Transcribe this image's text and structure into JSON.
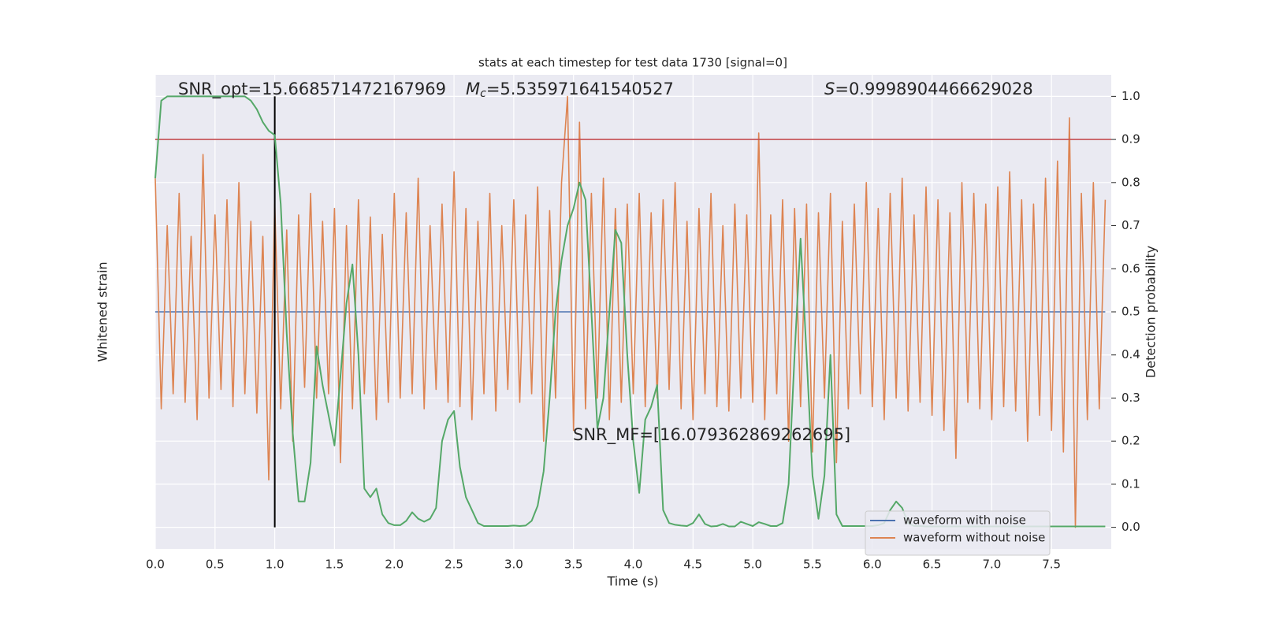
{
  "chart_data": {
    "type": "line",
    "title": "stats at each timestep for test data 1730 [signal=0]",
    "xlabel": "Time (s)",
    "ylabel": "Whitened strain",
    "y2label": "Detection probability",
    "snr_opt_label": "SNR_opt=15.668571472167969",
    "mc_label": [
      "M",
      "c",
      "=5.535971641540527"
    ],
    "s_label": [
      "S",
      "=0.9998904466629028"
    ],
    "snr_mf_label": "SNR_MF=[16.079362869262695]",
    "xlim": [
      0,
      8
    ],
    "xticks": [
      {
        "value": 0,
        "label": "0.0"
      },
      {
        "value": 0.5,
        "label": "0.5"
      },
      {
        "value": 1,
        "label": "1.0"
      },
      {
        "value": 1.5,
        "label": "1.5"
      },
      {
        "value": 2,
        "label": "2.0"
      },
      {
        "value": 2.5,
        "label": "2.5"
      },
      {
        "value": 3,
        "label": "3.0"
      },
      {
        "value": 3.5,
        "label": "3.5"
      },
      {
        "value": 4,
        "label": "4.0"
      },
      {
        "value": 4.5,
        "label": "4.5"
      },
      {
        "value": 5,
        "label": "5.0"
      },
      {
        "value": 5.5,
        "label": "5.5"
      },
      {
        "value": 6,
        "label": "6.0"
      },
      {
        "value": 6.5,
        "label": "6.5"
      },
      {
        "value": 7,
        "label": "7.0"
      },
      {
        "value": 7.5,
        "label": "7.5"
      }
    ],
    "ylim": [
      -1.1,
      1.1
    ],
    "y2lim": [
      -0.05,
      1.05
    ],
    "y2ticks": [
      {
        "value": 0,
        "label": "0.0"
      },
      {
        "value": 0.1,
        "label": "0.1"
      },
      {
        "value": 0.2,
        "label": "0.2"
      },
      {
        "value": 0.3,
        "label": "0.3"
      },
      {
        "value": 0.4,
        "label": "0.4"
      },
      {
        "value": 0.5,
        "label": "0.5"
      },
      {
        "value": 0.6,
        "label": "0.6"
      },
      {
        "value": 0.7,
        "label": "0.7"
      },
      {
        "value": 0.8,
        "label": "0.8"
      },
      {
        "value": 0.9,
        "label": "0.9"
      },
      {
        "value": 1,
        "label": "1.0"
      }
    ],
    "grid": true,
    "legend": "lower right",
    "threshold": 0.9,
    "threshold_color": "#c44e52",
    "marker_time": 1,
    "marker_color": "#000000",
    "x": [
      0,
      0.05,
      0.1,
      0.15,
      0.2,
      0.25,
      0.3,
      0.35,
      0.4,
      0.45,
      0.5,
      0.55,
      0.6,
      0.65,
      0.7,
      0.75,
      0.8,
      0.85,
      0.9,
      0.95,
      1,
      1.05,
      1.1,
      1.15,
      1.2,
      1.25,
      1.3,
      1.35,
      1.4,
      1.45,
      1.5,
      1.55,
      1.6,
      1.65,
      1.7,
      1.75,
      1.8,
      1.85,
      1.9,
      1.95,
      2,
      2.05,
      2.1,
      2.15,
      2.2,
      2.25,
      2.3,
      2.35,
      2.4,
      2.45,
      2.5,
      2.55,
      2.6,
      2.65,
      2.7,
      2.75,
      2.8,
      2.85,
      2.9,
      2.95,
      3,
      3.05,
      3.1,
      3.15,
      3.2,
      3.25,
      3.3,
      3.35,
      3.4,
      3.45,
      3.5,
      3.55,
      3.6,
      3.65,
      3.7,
      3.75,
      3.8,
      3.85,
      3.9,
      3.95,
      4,
      4.05,
      4.1,
      4.15,
      4.2,
      4.25,
      4.3,
      4.35,
      4.4,
      4.45,
      4.5,
      4.55,
      4.6,
      4.65,
      4.7,
      4.75,
      4.8,
      4.85,
      4.9,
      4.95,
      5,
      5.05,
      5.1,
      5.15,
      5.2,
      5.25,
      5.3,
      5.35,
      5.4,
      5.45,
      5.5,
      5.55,
      5.6,
      5.65,
      5.7,
      5.75,
      5.8,
      5.85,
      5.9,
      5.95,
      6,
      6.05,
      6.1,
      6.15,
      6.2,
      6.25,
      6.3,
      6.35,
      6.4,
      6.45,
      6.5,
      6.55,
      6.6,
      6.65,
      6.7,
      6.75,
      6.8,
      6.85,
      6.9,
      6.95,
      7,
      7.05,
      7.1,
      7.15,
      7.2,
      7.25,
      7.3,
      7.35,
      7.4,
      7.45,
      7.5,
      7.55,
      7.6,
      7.65,
      7.7,
      7.75,
      7.8,
      7.85,
      7.9,
      7.95
    ],
    "series": [
      {
        "name": "waveform with noise",
        "color": "#4c72b0",
        "values": [
          0,
          0,
          0,
          0,
          0,
          0,
          0,
          0,
          0,
          0,
          0,
          0,
          0,
          0,
          0,
          0,
          0,
          0,
          0,
          0,
          0,
          0,
          0,
          0,
          0,
          0,
          0,
          0,
          0,
          0,
          0,
          0,
          0,
          0,
          0,
          0,
          0,
          0,
          0,
          0,
          0,
          0,
          0,
          0,
          0,
          0,
          0,
          0,
          0,
          0,
          0,
          0,
          0,
          0,
          0,
          0,
          0,
          0,
          0,
          0,
          0,
          0,
          0,
          0,
          0,
          0,
          0,
          0,
          0,
          0,
          0,
          0,
          0,
          0,
          0,
          0,
          0,
          0,
          0,
          0,
          0,
          0,
          0,
          0,
          0,
          0,
          0,
          0,
          0,
          0,
          0,
          0,
          0,
          0,
          0,
          0,
          0,
          0,
          0,
          0,
          0,
          0,
          0,
          0,
          0,
          0,
          0,
          0,
          0,
          0,
          0,
          0,
          0,
          0,
          0,
          0,
          0,
          0,
          0,
          0,
          0,
          0,
          0,
          0,
          0,
          0,
          0,
          0,
          0,
          0,
          0,
          0,
          0,
          0,
          0,
          0,
          0,
          0,
          0,
          0,
          0,
          0,
          0,
          0,
          0,
          0,
          0,
          0,
          0,
          0,
          0,
          0,
          0,
          0,
          0,
          0,
          0,
          0,
          0,
          0
        ]
      },
      {
        "name": "waveform without noise",
        "color": "#dd8452",
        "values": [
          0.62,
          -0.45,
          0.4,
          -0.38,
          0.55,
          -0.42,
          0.35,
          -0.5,
          0.73,
          -0.4,
          0.45,
          -0.36,
          0.52,
          -0.44,
          0.6,
          -0.38,
          0.42,
          -0.47,
          0.35,
          -0.78,
          0.5,
          -0.45,
          0.38,
          -0.6,
          0.45,
          -0.35,
          0.55,
          -0.4,
          0.42,
          -0.38,
          0.48,
          -0.7,
          0.4,
          -0.45,
          0.52,
          -0.38,
          0.44,
          -0.5,
          0.36,
          -0.42,
          0.55,
          -0.4,
          0.46,
          -0.38,
          0.62,
          -0.45,
          0.4,
          -0.36,
          0.5,
          -0.42,
          0.65,
          -0.44,
          0.48,
          -0.5,
          0.42,
          -0.38,
          0.55,
          -0.46,
          0.4,
          -0.36,
          0.52,
          -0.42,
          0.45,
          -0.38,
          0.58,
          -0.6,
          0.47,
          -0.4,
          0.6,
          1.0,
          -0.55,
          0.88,
          -0.45,
          0.55,
          -0.4,
          0.62,
          -0.5,
          0.48,
          -0.42,
          0.5,
          -0.38,
          0.55,
          -0.44,
          0.46,
          -0.4,
          0.52,
          -0.36,
          0.6,
          -0.45,
          0.42,
          -0.5,
          0.48,
          -0.38,
          0.55,
          -0.44,
          0.4,
          -0.46,
          0.5,
          -0.4,
          0.45,
          -0.42,
          0.83,
          -0.5,
          0.45,
          -0.38,
          0.52,
          -0.6,
          0.48,
          -0.44,
          0.5,
          -0.65,
          0.46,
          -0.4,
          0.55,
          -0.7,
          0.42,
          -0.45,
          0.5,
          -0.38,
          0.6,
          -0.44,
          0.48,
          -0.5,
          0.55,
          -0.4,
          0.62,
          -0.46,
          0.45,
          -0.42,
          0.58,
          -0.48,
          0.52,
          -0.55,
          0.46,
          -0.68,
          0.6,
          -0.42,
          0.55,
          -0.45,
          0.5,
          -0.5,
          0.58,
          -0.44,
          0.65,
          -0.46,
          0.52,
          -0.6,
          0.5,
          -0.48,
          0.62,
          -0.55,
          0.7,
          -0.65,
          0.9,
          -1.0,
          0.55,
          -0.5,
          0.6,
          -0.45,
          0.52
        ]
      },
      {
        "color": "#55a868",
        "axis": "y2",
        "values": [
          0.81,
          0.99,
          1.0,
          1.0,
          1.0,
          1.0,
          1.0,
          1.0,
          1.0,
          1.0,
          1.0,
          1.0,
          1.0,
          1.0,
          1.0,
          1.0,
          0.99,
          0.97,
          0.94,
          0.92,
          0.91,
          0.75,
          0.45,
          0.22,
          0.06,
          0.06,
          0.15,
          0.42,
          0.33,
          0.26,
          0.19,
          0.35,
          0.52,
          0.61,
          0.4,
          0.09,
          0.07,
          0.09,
          0.03,
          0.01,
          0.005,
          0.005,
          0.015,
          0.035,
          0.02,
          0.013,
          0.02,
          0.045,
          0.2,
          0.25,
          0.27,
          0.14,
          0.07,
          0.04,
          0.01,
          0.003,
          0.003,
          0.003,
          0.003,
          0.003,
          0.004,
          0.003,
          0.004,
          0.015,
          0.05,
          0.13,
          0.3,
          0.5,
          0.62,
          0.7,
          0.74,
          0.8,
          0.76,
          0.5,
          0.23,
          0.3,
          0.5,
          0.69,
          0.66,
          0.4,
          0.2,
          0.08,
          0.25,
          0.28,
          0.33,
          0.04,
          0.01,
          0.006,
          0.004,
          0.003,
          0.01,
          0.03,
          0.008,
          0.002,
          0.003,
          0.008,
          0.002,
          0.002,
          0.013,
          0.008,
          0.003,
          0.012,
          0.008,
          0.003,
          0.003,
          0.01,
          0.1,
          0.4,
          0.67,
          0.4,
          0.12,
          0.02,
          0.12,
          0.4,
          0.03,
          0.003,
          0.003,
          0.003,
          0.003,
          0.003,
          0.003,
          0.005,
          0.01,
          0.04,
          0.06,
          0.045,
          0.01,
          0.003,
          0.003,
          0.002,
          0.002,
          0.002,
          0.002,
          0.002,
          0.002,
          0.002,
          0.002,
          0.002,
          0.002,
          0.002,
          0.002,
          0.002,
          0.002,
          0.002,
          0.002,
          0.002,
          0.002,
          0.002,
          0.002,
          0.002,
          0.002,
          0.002,
          0.002,
          0.002,
          0.002,
          0.002,
          0.002,
          0.002,
          0.002,
          0.002
        ]
      }
    ]
  }
}
